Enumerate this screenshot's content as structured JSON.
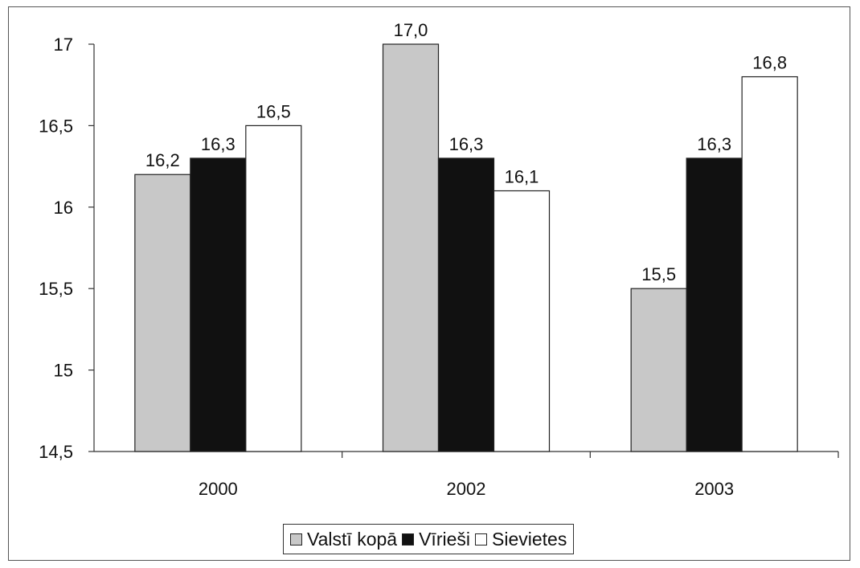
{
  "chart_data": {
    "type": "bar",
    "categories": [
      "2000",
      "2002",
      "2003"
    ],
    "series": [
      {
        "name": "Valstī kopā",
        "values": [
          16.2,
          17.0,
          15.5
        ],
        "labels": [
          "16,2",
          "17,0",
          "15,5"
        ],
        "color": "#c8c8c8"
      },
      {
        "name": "Vīrieši",
        "values": [
          16.3,
          16.3,
          16.3
        ],
        "labels": [
          "16,3",
          "16,3",
          "16,3"
        ],
        "color": "#111111"
      },
      {
        "name": "Sievietes",
        "values": [
          16.5,
          16.1,
          16.8
        ],
        "labels": [
          "16,5",
          "16,1",
          "16,8"
        ],
        "color": "#ffffff"
      }
    ],
    "yticks": [
      14.5,
      15,
      15.5,
      16,
      16.5,
      17
    ],
    "ytick_labels": [
      "14,5",
      "15",
      "15,5",
      "16",
      "16,5",
      "17"
    ],
    "ylim": [
      14.5,
      17
    ],
    "title": "",
    "xlabel": "",
    "ylabel": "",
    "legend_position": "bottom",
    "grid": false
  }
}
